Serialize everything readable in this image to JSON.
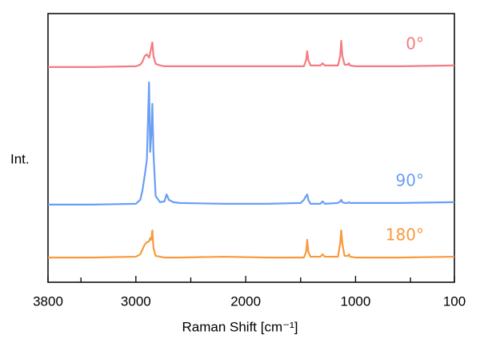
{
  "chart_data": {
    "type": "line",
    "xlabel": "Raman Shift [cm⁻¹]",
    "ylabel": "Int.",
    "xlim": [
      3800,
      100
    ],
    "xticks": [
      3800,
      3000,
      2000,
      1000,
      100
    ],
    "minor_xticks": [
      3500,
      2500,
      1500,
      500
    ],
    "ylim": [
      0,
      100
    ],
    "x": [
      3800,
      3400,
      3000,
      2960,
      2940,
      2920,
      2900,
      2880,
      2870,
      2860,
      2850,
      2840,
      2820,
      2780,
      2740,
      2720,
      2700,
      2660,
      2600,
      2200,
      1800,
      1500,
      1470,
      1450,
      1440,
      1430,
      1410,
      1320,
      1300,
      1280,
      1160,
      1140,
      1130,
      1120,
      1100,
      1070,
      1060,
      1050,
      1000,
      600,
      100
    ],
    "series": [
      {
        "name": "0°",
        "color": "#f47b80",
        "values": [
          80.1,
          80.1,
          80.4,
          81.0,
          82.1,
          84.2,
          84.8,
          83.6,
          85.4,
          87.2,
          89.3,
          84.2,
          81.3,
          80.7,
          80.4,
          80.4,
          80.4,
          80.4,
          80.4,
          80.4,
          80.4,
          80.4,
          80.4,
          82.7,
          86.0,
          82.7,
          80.7,
          80.7,
          81.5,
          80.7,
          80.7,
          84.2,
          89.9,
          84.2,
          81.0,
          81.0,
          81.5,
          80.7,
          80.4,
          80.4,
          80.7
        ]
      },
      {
        "name": "90°",
        "color": "#6a9ef5",
        "values": [
          28.9,
          28.9,
          29.2,
          30.7,
          34.2,
          39.6,
          45.5,
          74.4,
          48.5,
          54.5,
          66.4,
          48.5,
          32.1,
          29.8,
          30.1,
          32.7,
          30.7,
          29.8,
          29.5,
          29.2,
          29.2,
          29.5,
          30.7,
          32.1,
          32.7,
          30.7,
          29.2,
          29.2,
          30.1,
          29.2,
          29.5,
          30.1,
          30.7,
          29.8,
          29.5,
          29.5,
          29.8,
          29.5,
          29.5,
          29.5,
          29.8
        ]
      },
      {
        "name": "180°",
        "color": "#f89a3c",
        "values": [
          9.2,
          9.2,
          9.5,
          10.4,
          12.2,
          14.0,
          14.9,
          15.2,
          16.4,
          15.8,
          19.3,
          12.8,
          9.8,
          9.5,
          9.2,
          9.2,
          9.2,
          9.2,
          9.2,
          9.5,
          9.2,
          9.2,
          9.2,
          11.3,
          15.8,
          11.3,
          9.5,
          9.5,
          10.4,
          9.5,
          9.5,
          14.3,
          19.3,
          14.3,
          9.8,
          9.8,
          10.4,
          9.5,
          9.2,
          9.2,
          9.5
        ]
      }
    ]
  }
}
